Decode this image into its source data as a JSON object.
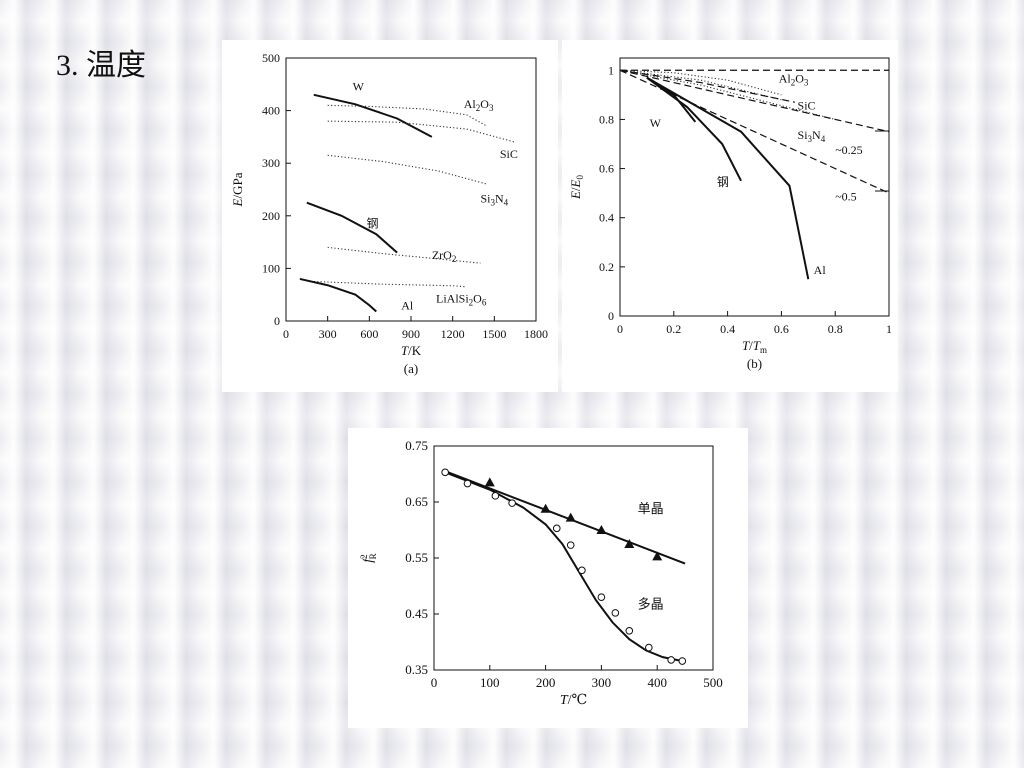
{
  "slide": {
    "title": "3. 温度"
  },
  "chart_data": [
    {
      "id": "a",
      "type": "line",
      "caption": "(a)",
      "xlabel_italic": "T",
      "xlabel_rest": "/K",
      "ylabel_italic": "E",
      "ylabel_rest": "/GPa",
      "xlim": [
        0,
        1800
      ],
      "ylim": [
        0,
        500
      ],
      "xticks": [
        0,
        300,
        600,
        900,
        1200,
        1500,
        1800
      ],
      "yticks": [
        0,
        100,
        200,
        300,
        400,
        500
      ],
      "grid": false,
      "series": [
        {
          "name": "W",
          "style": "solid",
          "x": [
            200,
            500,
            800,
            1050
          ],
          "y": [
            430,
            412,
            385,
            350
          ]
        },
        {
          "name": "Al2O3",
          "style": "dotted",
          "x": [
            300,
            600,
            1000,
            1300,
            1450
          ],
          "y": [
            410,
            408,
            403,
            392,
            370
          ]
        },
        {
          "name": "SiC",
          "style": "dotted",
          "x": [
            300,
            800,
            1300,
            1650
          ],
          "y": [
            380,
            378,
            365,
            340
          ]
        },
        {
          "name": "Si3N4",
          "style": "dotted",
          "x": [
            300,
            700,
            1100,
            1450
          ],
          "y": [
            315,
            303,
            285,
            260
          ]
        },
        {
          "name": "钢",
          "style": "solid",
          "x": [
            150,
            400,
            650,
            800
          ],
          "y": [
            225,
            200,
            165,
            130
          ]
        },
        {
          "name": "ZrO2",
          "style": "dotted",
          "x": [
            300,
            700,
            1100,
            1400
          ],
          "y": [
            140,
            128,
            118,
            110
          ]
        },
        {
          "name": "LiAlSi2O6",
          "style": "dotted",
          "x": [
            200,
            700,
            1200,
            1300
          ],
          "y": [
            75,
            70,
            67,
            65
          ]
        },
        {
          "name": "Al",
          "style": "solid",
          "x": [
            100,
            300,
            500,
            600,
            650
          ],
          "y": [
            80,
            68,
            50,
            30,
            18
          ]
        }
      ],
      "labels": [
        {
          "html": "W",
          "x": 480,
          "y": 438
        },
        {
          "html": "Al<tspan font-size='9' dy='3'>2</tspan><tspan dy='-3'>O</tspan><tspan font-size='9' dy='3'>3</tspan>",
          "x": 1280,
          "y": 405
        },
        {
          "html": "SiC",
          "x": 1540,
          "y": 310
        },
        {
          "html": "Si<tspan font-size='9' dy='3'>3</tspan><tspan dy='-3'>N</tspan><tspan font-size='9' dy='3'>4</tspan>",
          "x": 1400,
          "y": 225
        },
        {
          "html": "钢",
          "x": 580,
          "y": 178
        },
        {
          "html": "ZrO<tspan font-size='9' dy='3'>2</tspan>",
          "x": 1050,
          "y": 118
        },
        {
          "html": "LiAlSi<tspan font-size='9' dy='3'>2</tspan><tspan dy='-3'>O</tspan><tspan font-size='9' dy='3'>6</tspan>",
          "x": 1080,
          "y": 35
        },
        {
          "html": "Al",
          "x": 830,
          "y": 22
        }
      ]
    },
    {
      "id": "b",
      "type": "line",
      "caption": "(b)",
      "xlabel_italic": "T",
      "xlabel_rest": "/T",
      "xlabel_sub": "m",
      "ylabel_italic": "E",
      "ylabel_rest": "/E",
      "ylabel_sub": "0",
      "xlim": [
        0,
        1
      ],
      "ylim": [
        0,
        1.05
      ],
      "xticks": [
        0,
        0.2,
        0.4,
        0.6,
        0.8,
        1
      ],
      "ytick_values": [
        0,
        0.2,
        0.4,
        0.6,
        0.8,
        1
      ],
      "grid": false,
      "series": [
        {
          "name": "1",
          "style": "dashed",
          "x": [
            0,
            1
          ],
          "y": [
            1,
            1
          ]
        },
        {
          "name": "Al2O3",
          "style": "dotted",
          "x": [
            0,
            0.2,
            0.4,
            0.6
          ],
          "y": [
            1,
            0.99,
            0.96,
            0.9
          ]
        },
        {
          "name": "SiC",
          "style": "dotted",
          "x": [
            0,
            0.3,
            0.6
          ],
          "y": [
            1,
            0.96,
            0.88
          ]
        },
        {
          "name": "Al2O3-SiC dashed",
          "style": "dashed",
          "x": [
            0,
            0.3,
            0.65
          ],
          "y": [
            1,
            0.95,
            0.87
          ]
        },
        {
          "name": "Si3N4",
          "style": "dotted",
          "x": [
            0,
            0.3,
            0.55,
            0.8
          ],
          "y": [
            1,
            0.94,
            0.87,
            0.8
          ]
        },
        {
          "name": "~0.25",
          "style": "dashed",
          "x": [
            0,
            1
          ],
          "y": [
            1,
            0.75
          ]
        },
        {
          "name": "~0.5",
          "style": "dashed",
          "x": [
            0,
            1
          ],
          "y": [
            1,
            0.5
          ]
        },
        {
          "name": "W",
          "style": "solid",
          "x": [
            0.1,
            0.2,
            0.28
          ],
          "y": [
            0.97,
            0.9,
            0.79
          ]
        },
        {
          "name": "钢",
          "style": "solid",
          "x": [
            0.1,
            0.25,
            0.38,
            0.45
          ],
          "y": [
            0.97,
            0.85,
            0.7,
            0.55
          ]
        },
        {
          "name": "Al",
          "style": "solid",
          "x": [
            0.1,
            0.45,
            0.63,
            0.7
          ],
          "y": [
            0.97,
            0.75,
            0.53,
            0.15
          ]
        }
      ],
      "labels": [
        {
          "html": "Al<tspan font-size='9' dy='3'>2</tspan><tspan dy='-3'>O</tspan><tspan font-size='9' dy='3'>3</tspan>",
          "x": 0.59,
          "y": 0.95
        },
        {
          "html": "SiC",
          "x": 0.66,
          "y": 0.84
        },
        {
          "html": "Si<tspan font-size='9' dy='3'>3</tspan><tspan dy='-3'>N</tspan><tspan font-size='9' dy='3'>4</tspan>",
          "x": 0.66,
          "y": 0.72
        },
        {
          "html": "~0.25",
          "x": 0.8,
          "y": 0.66
        },
        {
          "html": "~0.5",
          "x": 0.8,
          "y": 0.47
        },
        {
          "html": "W",
          "x": 0.11,
          "y": 0.77
        },
        {
          "html": "钢",
          "x": 0.36,
          "y": 0.53
        },
        {
          "html": "Al",
          "x": 0.72,
          "y": 0.17
        }
      ]
    },
    {
      "id": "c",
      "type": "scatter",
      "xlabel_italic": "T",
      "xlabel_rest": "/℃",
      "ylabel_italic": "f",
      "ylabel_sup": "2",
      "ylabel_sub": "R",
      "xlim": [
        0,
        500
      ],
      "ylim": [
        0.35,
        0.75
      ],
      "xticks": [
        0,
        100,
        200,
        300,
        400,
        500
      ],
      "yticks": [
        "0.35",
        "0.45",
        "0.55",
        "0.65",
        "0.75"
      ],
      "grid": false,
      "series": [
        {
          "name": "单晶",
          "marker": "triangle",
          "points_x": [
            100,
            200,
            245,
            300,
            350,
            400
          ],
          "points_y": [
            0.685,
            0.638,
            0.622,
            0.6,
            0.575,
            0.553
          ],
          "fit_x": [
            20,
            450
          ],
          "fit_y": [
            0.705,
            0.54
          ]
        },
        {
          "name": "多晶",
          "marker": "circle",
          "points_x": [
            20,
            60,
            110,
            140,
            220,
            245,
            265,
            300,
            325,
            350,
            385,
            425,
            445
          ],
          "points_y": [
            0.703,
            0.683,
            0.661,
            0.648,
            0.603,
            0.573,
            0.528,
            0.48,
            0.452,
            0.42,
            0.39,
            0.368,
            0.366
          ],
          "fit_x": [
            20,
            100,
            160,
            200,
            230,
            260,
            290,
            320,
            350,
            380,
            410,
            440
          ],
          "fit_y": [
            0.703,
            0.672,
            0.64,
            0.61,
            0.575,
            0.525,
            0.475,
            0.435,
            0.405,
            0.385,
            0.373,
            0.367
          ]
        }
      ],
      "labels": [
        {
          "html": "单晶",
          "x": 365,
          "y": 0.63
        },
        {
          "html": "多晶",
          "x": 365,
          "y": 0.46
        }
      ]
    }
  ]
}
